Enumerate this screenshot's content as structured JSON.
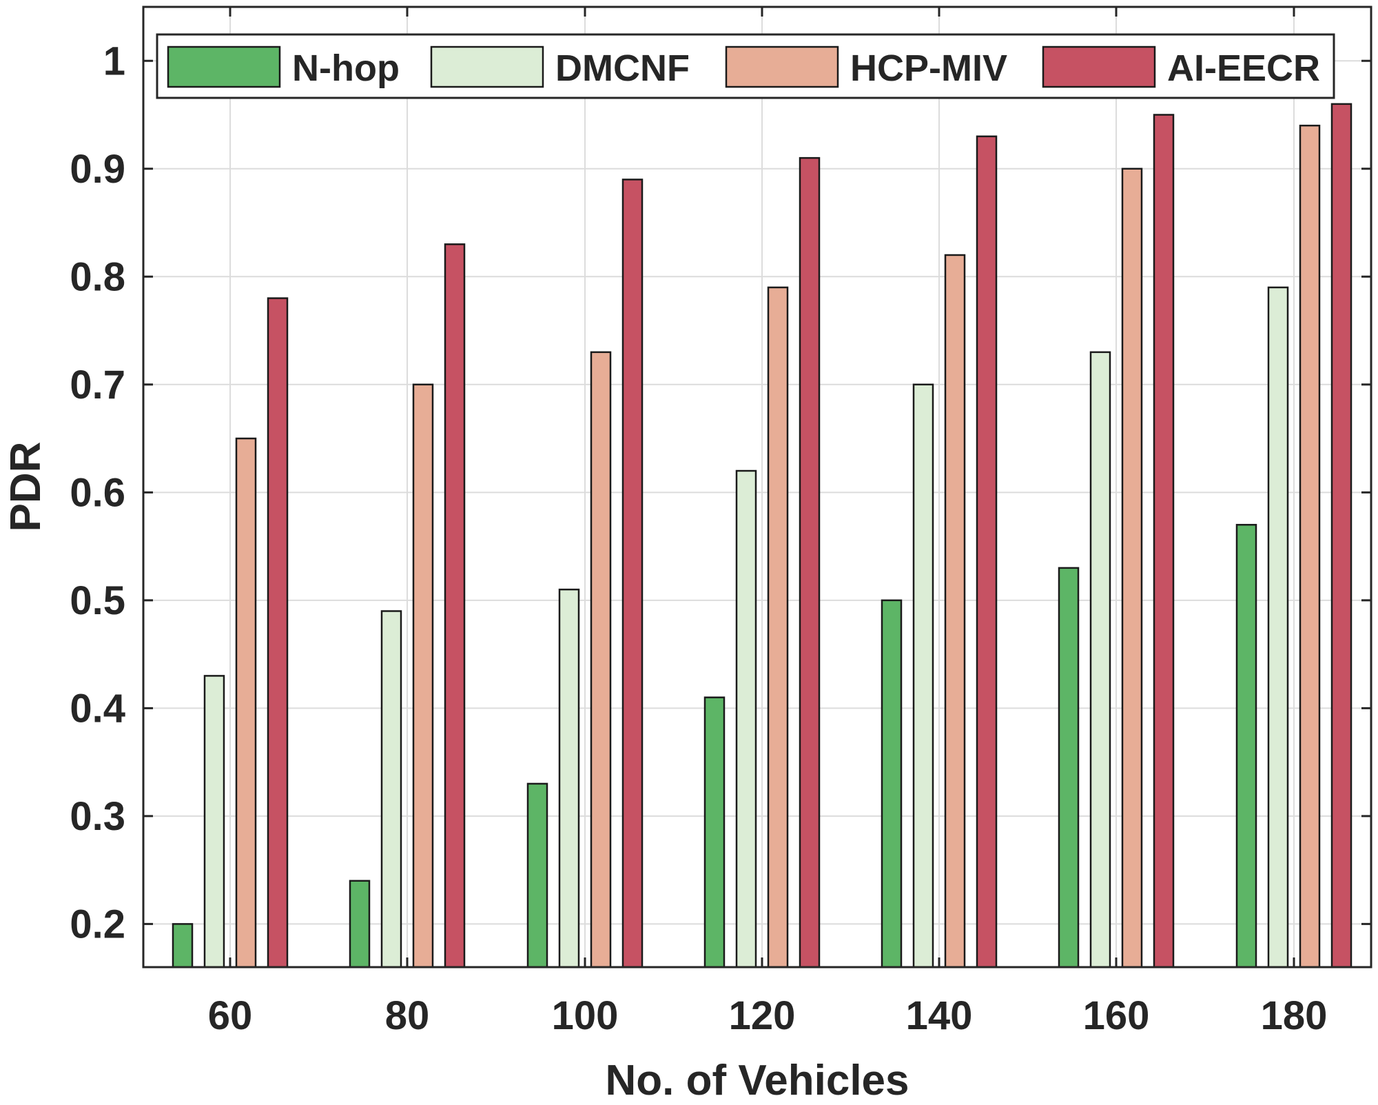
{
  "chart_data": {
    "type": "bar",
    "xlabel": "No. of Vehicles",
    "ylabel": "PDR",
    "categories": [
      "60",
      "80",
      "100",
      "120",
      "140",
      "160",
      "180"
    ],
    "ylim": [
      0.16,
      1.05
    ],
    "yticks": [
      0.2,
      0.3,
      0.4,
      0.5,
      0.6,
      0.7,
      0.8,
      0.9,
      1
    ],
    "ytick_labels": [
      "0.2",
      "0.3",
      "0.4",
      "0.5",
      "0.6",
      "0.7",
      "0.8",
      "0.9",
      "1"
    ],
    "grid": true,
    "legend_position": "top",
    "legend_orientation": "horizontal",
    "series": [
      {
        "name": "N-hop",
        "color": "#5db566",
        "values": [
          0.2,
          0.24,
          0.33,
          0.41,
          0.5,
          0.53,
          0.57
        ]
      },
      {
        "name": "DMCNF",
        "color": "#dcedd6",
        "values": [
          0.43,
          0.49,
          0.51,
          0.62,
          0.7,
          0.73,
          0.79
        ]
      },
      {
        "name": "HCP-MIV",
        "color": "#e7ad96",
        "values": [
          0.65,
          0.7,
          0.73,
          0.79,
          0.82,
          0.9,
          0.94
        ]
      },
      {
        "name": "AI-EECR",
        "color": "#c65263",
        "values": [
          0.78,
          0.83,
          0.89,
          0.91,
          0.93,
          0.95,
          0.96
        ]
      }
    ]
  }
}
